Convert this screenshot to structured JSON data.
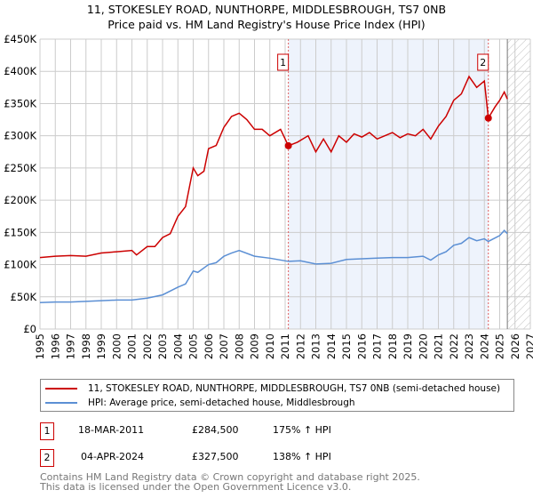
{
  "title_line1": "11, STOKESLEY ROAD, NUNTHORPE, MIDDLESBROUGH, TS7 0NB",
  "title_line2": "Price paid vs. HM Land Registry's House Price Index (HPI)",
  "chart_data": {
    "type": "line",
    "xlim": [
      1995,
      2027
    ],
    "ylim": [
      0,
      450000
    ],
    "y_ticks": [
      0,
      50000,
      100000,
      150000,
      200000,
      250000,
      300000,
      350000,
      400000,
      450000
    ],
    "y_tick_labels": [
      "£0",
      "£50K",
      "£100K",
      "£150K",
      "£200K",
      "£250K",
      "£300K",
      "£350K",
      "£400K",
      "£450K"
    ],
    "x_ticks": [
      "1995",
      "1996",
      "1997",
      "1998",
      "1999",
      "2000",
      "2001",
      "2002",
      "2003",
      "2004",
      "2005",
      "2006",
      "2007",
      "2008",
      "2009",
      "2010",
      "2011",
      "2012",
      "2013",
      "2014",
      "2015",
      "2016",
      "2017",
      "2018",
      "2019",
      "2020",
      "2021",
      "2022",
      "2023",
      "2024",
      "2025",
      "2026",
      "2027"
    ],
    "grid": true,
    "shaded_range": [
      2011.21,
      2024.26
    ],
    "hatched_from": 2025.5,
    "series": [
      {
        "name": "11, STOKESLEY ROAD, NUNTHORPE, MIDDLESBROUGH, TS7 0NB (semi-detached house)",
        "color": "#cc0000",
        "x": [
          1995,
          1996,
          1997,
          1998,
          1999,
          2000,
          2001,
          2001.3,
          2002,
          2002.5,
          2003,
          2003.5,
          2004,
          2004.5,
          2005,
          2005.3,
          2005.7,
          2006,
          2006.5,
          2007,
          2007.5,
          2008,
          2008.5,
          2009,
          2009.5,
          2010,
          2010.7,
          2011.21,
          2011.8,
          2012.5,
          2013,
          2013.5,
          2014,
          2014.5,
          2015,
          2015.5,
          2016,
          2016.5,
          2017,
          2017.5,
          2018,
          2018.5,
          2019,
          2019.5,
          2020,
          2020.5,
          2021,
          2021.5,
          2022,
          2022.5,
          2023,
          2023.5,
          2024,
          2024.26,
          2024.7,
          2025,
          2025.3,
          2025.5
        ],
        "values": [
          111000,
          113000,
          114000,
          113000,
          118000,
          120000,
          122000,
          115000,
          128000,
          128000,
          142000,
          148000,
          175000,
          190000,
          250000,
          238000,
          245000,
          280000,
          285000,
          313000,
          330000,
          335000,
          325000,
          310000,
          310000,
          300000,
          310000,
          284500,
          290000,
          300000,
          275000,
          295000,
          275000,
          300000,
          290000,
          303000,
          298000,
          305000,
          295000,
          300000,
          305000,
          297000,
          303000,
          300000,
          310000,
          295000,
          315000,
          330000,
          355000,
          365000,
          392000,
          375000,
          385000,
          327500,
          345000,
          355000,
          368000,
          357000
        ]
      },
      {
        "name": "HPI: Average price, semi-detached house, Middlesbrough",
        "color": "#5b8fd4",
        "x": [
          1995,
          1996,
          1997,
          1998,
          1999,
          2000,
          2001,
          2002,
          2003,
          2004,
          2004.5,
          2005,
          2005.3,
          2006,
          2006.5,
          2007,
          2007.5,
          2008,
          2009,
          2010,
          2011.21,
          2012,
          2013,
          2014,
          2015,
          2016,
          2017,
          2018,
          2019,
          2020,
          2020.5,
          2021,
          2021.5,
          2022,
          2022.5,
          2023,
          2023.5,
          2024,
          2024.26,
          2025,
          2025.3,
          2025.5
        ],
        "values": [
          41000,
          42000,
          42000,
          43000,
          44000,
          45000,
          45000,
          48000,
          53000,
          65000,
          70000,
          90000,
          88000,
          100000,
          103000,
          113000,
          118000,
          122000,
          113000,
          110000,
          105000,
          106000,
          101000,
          102000,
          108000,
          109000,
          110000,
          111000,
          111000,
          113000,
          107000,
          115000,
          120000,
          130000,
          133000,
          142000,
          137000,
          140000,
          136000,
          145000,
          153000,
          148000
        ]
      }
    ],
    "annotations": [
      {
        "label": "1",
        "x": 2011.21,
        "value": 284500
      },
      {
        "label": "2",
        "x": 2024.26,
        "value": 327500
      }
    ]
  },
  "sales": [
    {
      "num": "1",
      "date": "18-MAR-2011",
      "price": "£284,500",
      "hpi": "175% ↑ HPI"
    },
    {
      "num": "2",
      "date": "04-APR-2024",
      "price": "£327,500",
      "hpi": "138% ↑ HPI"
    }
  ],
  "footer_line1": "Contains HM Land Registry data © Crown copyright and database right 2025.",
  "footer_line2": "This data is licensed under the Open Government Licence v3.0."
}
